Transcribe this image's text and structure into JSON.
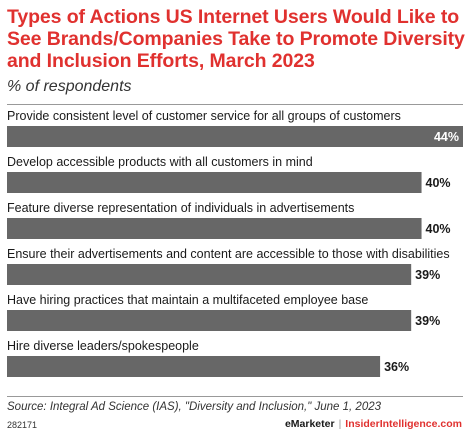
{
  "title": "Types of Actions US Internet Users Would Like to See Brands/Companies Take to Promote Diversity and Inclusion Efforts, March 2023",
  "subtitle": "% of respondents",
  "source": "Source: Integral Ad Science (IAS), \"Diversity and Inclusion,\" June 1, 2023",
  "footer": {
    "chart_id": "282171",
    "brand_left": "eMarketer",
    "separator": "|",
    "brand_right": "InsiderIntelligence.com"
  },
  "colors": {
    "title": "#e0312f",
    "bar": "#676767",
    "text": "#1a1a1a"
  },
  "chart_data": {
    "type": "bar",
    "orientation": "horizontal",
    "categories": [
      "Provide consistent level of customer service for all groups of customers",
      "Develop accessible products with all customers in mind",
      "Feature diverse representation of individuals in advertisements",
      "Ensure their advertisements and content are accessible to those with disabilities",
      "Have hiring practices that maintain a multifaceted employee base",
      "Hire diverse leaders/spokespeople"
    ],
    "values": [
      44,
      40,
      40,
      39,
      39,
      36
    ],
    "value_labels": [
      "44%",
      "40%",
      "40%",
      "39%",
      "39%",
      "36%"
    ],
    "xlim": [
      0,
      44
    ],
    "grid": false,
    "legend": "none"
  }
}
